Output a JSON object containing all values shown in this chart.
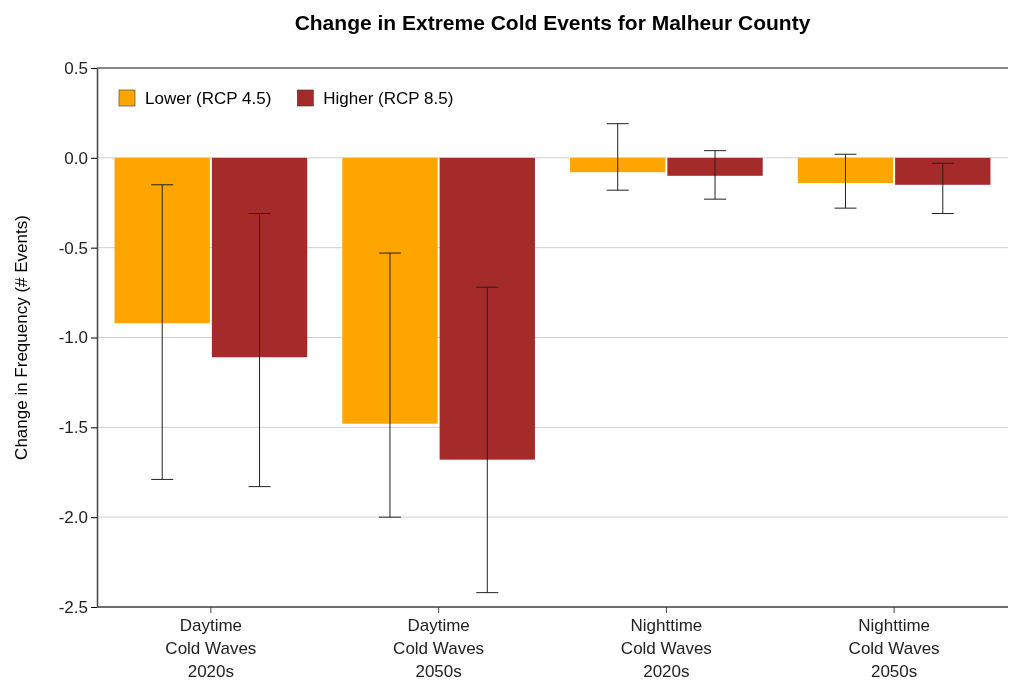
{
  "chart_data": {
    "type": "bar",
    "title": "Change in Extreme Cold Events for Malheur County",
    "ylabel": "Change in Frequency (# Events)",
    "categories": [
      "Daytime\nCold Waves\n2020s",
      "Daytime\nCold Waves\n2050s",
      "Nighttime\nCold Waves\n2020s",
      "Nighttime\nCold Waves\n2050s"
    ],
    "series": [
      {
        "name": "Lower (RCP 4.5)",
        "color": "#ffa500",
        "values": [
          -0.92,
          -1.48,
          -0.08,
          -0.14
        ],
        "errors": [
          [
            -1.79,
            -0.15
          ],
          [
            -2.0,
            -0.53
          ],
          [
            -0.18,
            0.19
          ],
          [
            -0.28,
            0.02
          ]
        ]
      },
      {
        "name": "Higher (RCP 8.5)",
        "color": "#a52a2a",
        "values": [
          -1.11,
          -1.68,
          -0.1,
          -0.15
        ],
        "errors": [
          [
            -1.83,
            -0.31
          ],
          [
            -2.42,
            -0.72
          ],
          [
            -0.23,
            0.04
          ],
          [
            -0.31,
            -0.03
          ]
        ]
      }
    ],
    "ylim": [
      -2.5,
      0.5
    ],
    "yticks": [
      {
        "value": -2.5,
        "label": "-2.5"
      },
      {
        "value": -2,
        "label": "-2.0"
      },
      {
        "value": -1.5,
        "label": "-1.5"
      },
      {
        "value": -1,
        "label": "-1.0"
      },
      {
        "value": -0.5,
        "label": "-0.5"
      },
      {
        "value": 0,
        "label": "0.0"
      },
      {
        "value": 0.5,
        "label": "0.5"
      }
    ],
    "grid": "y",
    "legend": "top left"
  }
}
